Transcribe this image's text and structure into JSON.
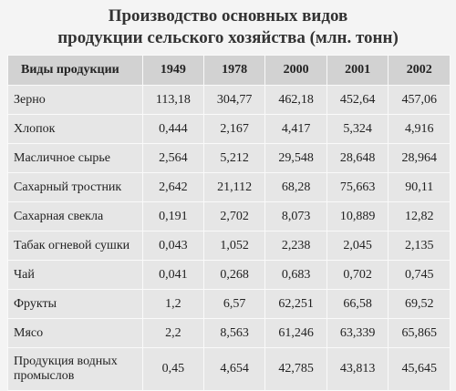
{
  "header": {
    "title": [
      "Производство основных видов",
      "продукции сельского хозяйства (млн. тонн)"
    ]
  },
  "table": {
    "columns": [
      "Виды продукции",
      "1949",
      "1978",
      "2000",
      "2001",
      "2002"
    ],
    "rows": [
      [
        "Зерно",
        "113,18",
        "304,77",
        "462,18",
        "452,64",
        "457,06"
      ],
      [
        "Хлопок",
        "0,444",
        "2,167",
        "4,417",
        "5,324",
        "4,916"
      ],
      [
        "Масличное сырье",
        "2,564",
        "5,212",
        "29,548",
        "28,648",
        "28,964"
      ],
      [
        "Сахарный тростник",
        "2,642",
        "21,112",
        "68,28",
        "75,663",
        "90,11"
      ],
      [
        "Сахарная свекла",
        "0,191",
        "2,702",
        "8,073",
        "10,889",
        "12,82"
      ],
      [
        "Табак огневой сушки",
        "0,043",
        "1,052",
        "2,238",
        "2,045",
        "2,135"
      ],
      [
        "Чай",
        "0,041",
        "0,268",
        "0,683",
        "0,702",
        "0,745"
      ],
      [
        "Фрукты",
        "1,2",
        "6,57",
        "62,251",
        "66,58",
        "69,52"
      ],
      [
        "Мясо",
        "2,2",
        "8,563",
        "61,246",
        "63,339",
        "65,865"
      ],
      [
        "Продукция водных промыслов",
        "0,45",
        "4,654",
        "42,785",
        "43,813",
        "45,645"
      ]
    ]
  }
}
